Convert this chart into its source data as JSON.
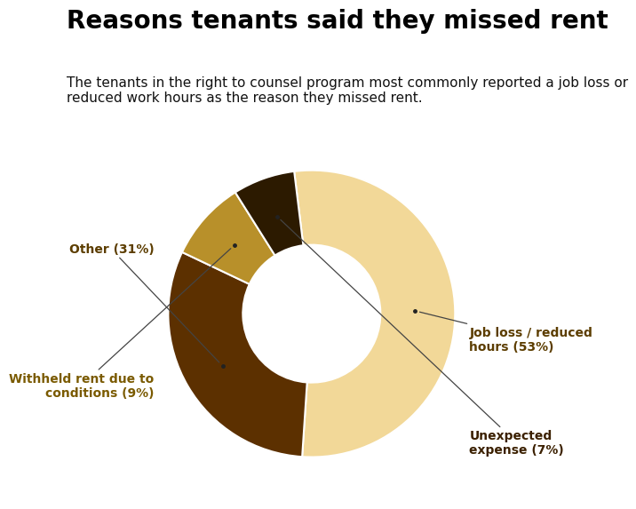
{
  "title": "Reasons tenants said they missed rent",
  "subtitle": "The tenants in the right to counsel program most commonly reported a job loss or\nreduced work hours as the reason they missed rent.",
  "slices": [
    {
      "label": "Job loss / reduced\nhours (53%)",
      "value": 53,
      "color": "#F2D898",
      "text_color": "#5C3D00"
    },
    {
      "label": "Other (31%)",
      "value": 31,
      "color": "#5C3000",
      "text_color": "#5C3D00"
    },
    {
      "label": "Withheld rent due to\nconditions (9%)",
      "value": 9,
      "color": "#B8902A",
      "text_color": "#7A5A00"
    },
    {
      "label": "Unexpected\nexpense (7%)",
      "value": 7,
      "color": "#2C1A00",
      "text_color": "#3B2000"
    }
  ],
  "background_color": "#ffffff",
  "title_fontsize": 20,
  "subtitle_fontsize": 11,
  "wedge_edge_color": "#ffffff",
  "wedge_linewidth": 1.5,
  "donut_width": 0.52,
  "start_angle": 97
}
